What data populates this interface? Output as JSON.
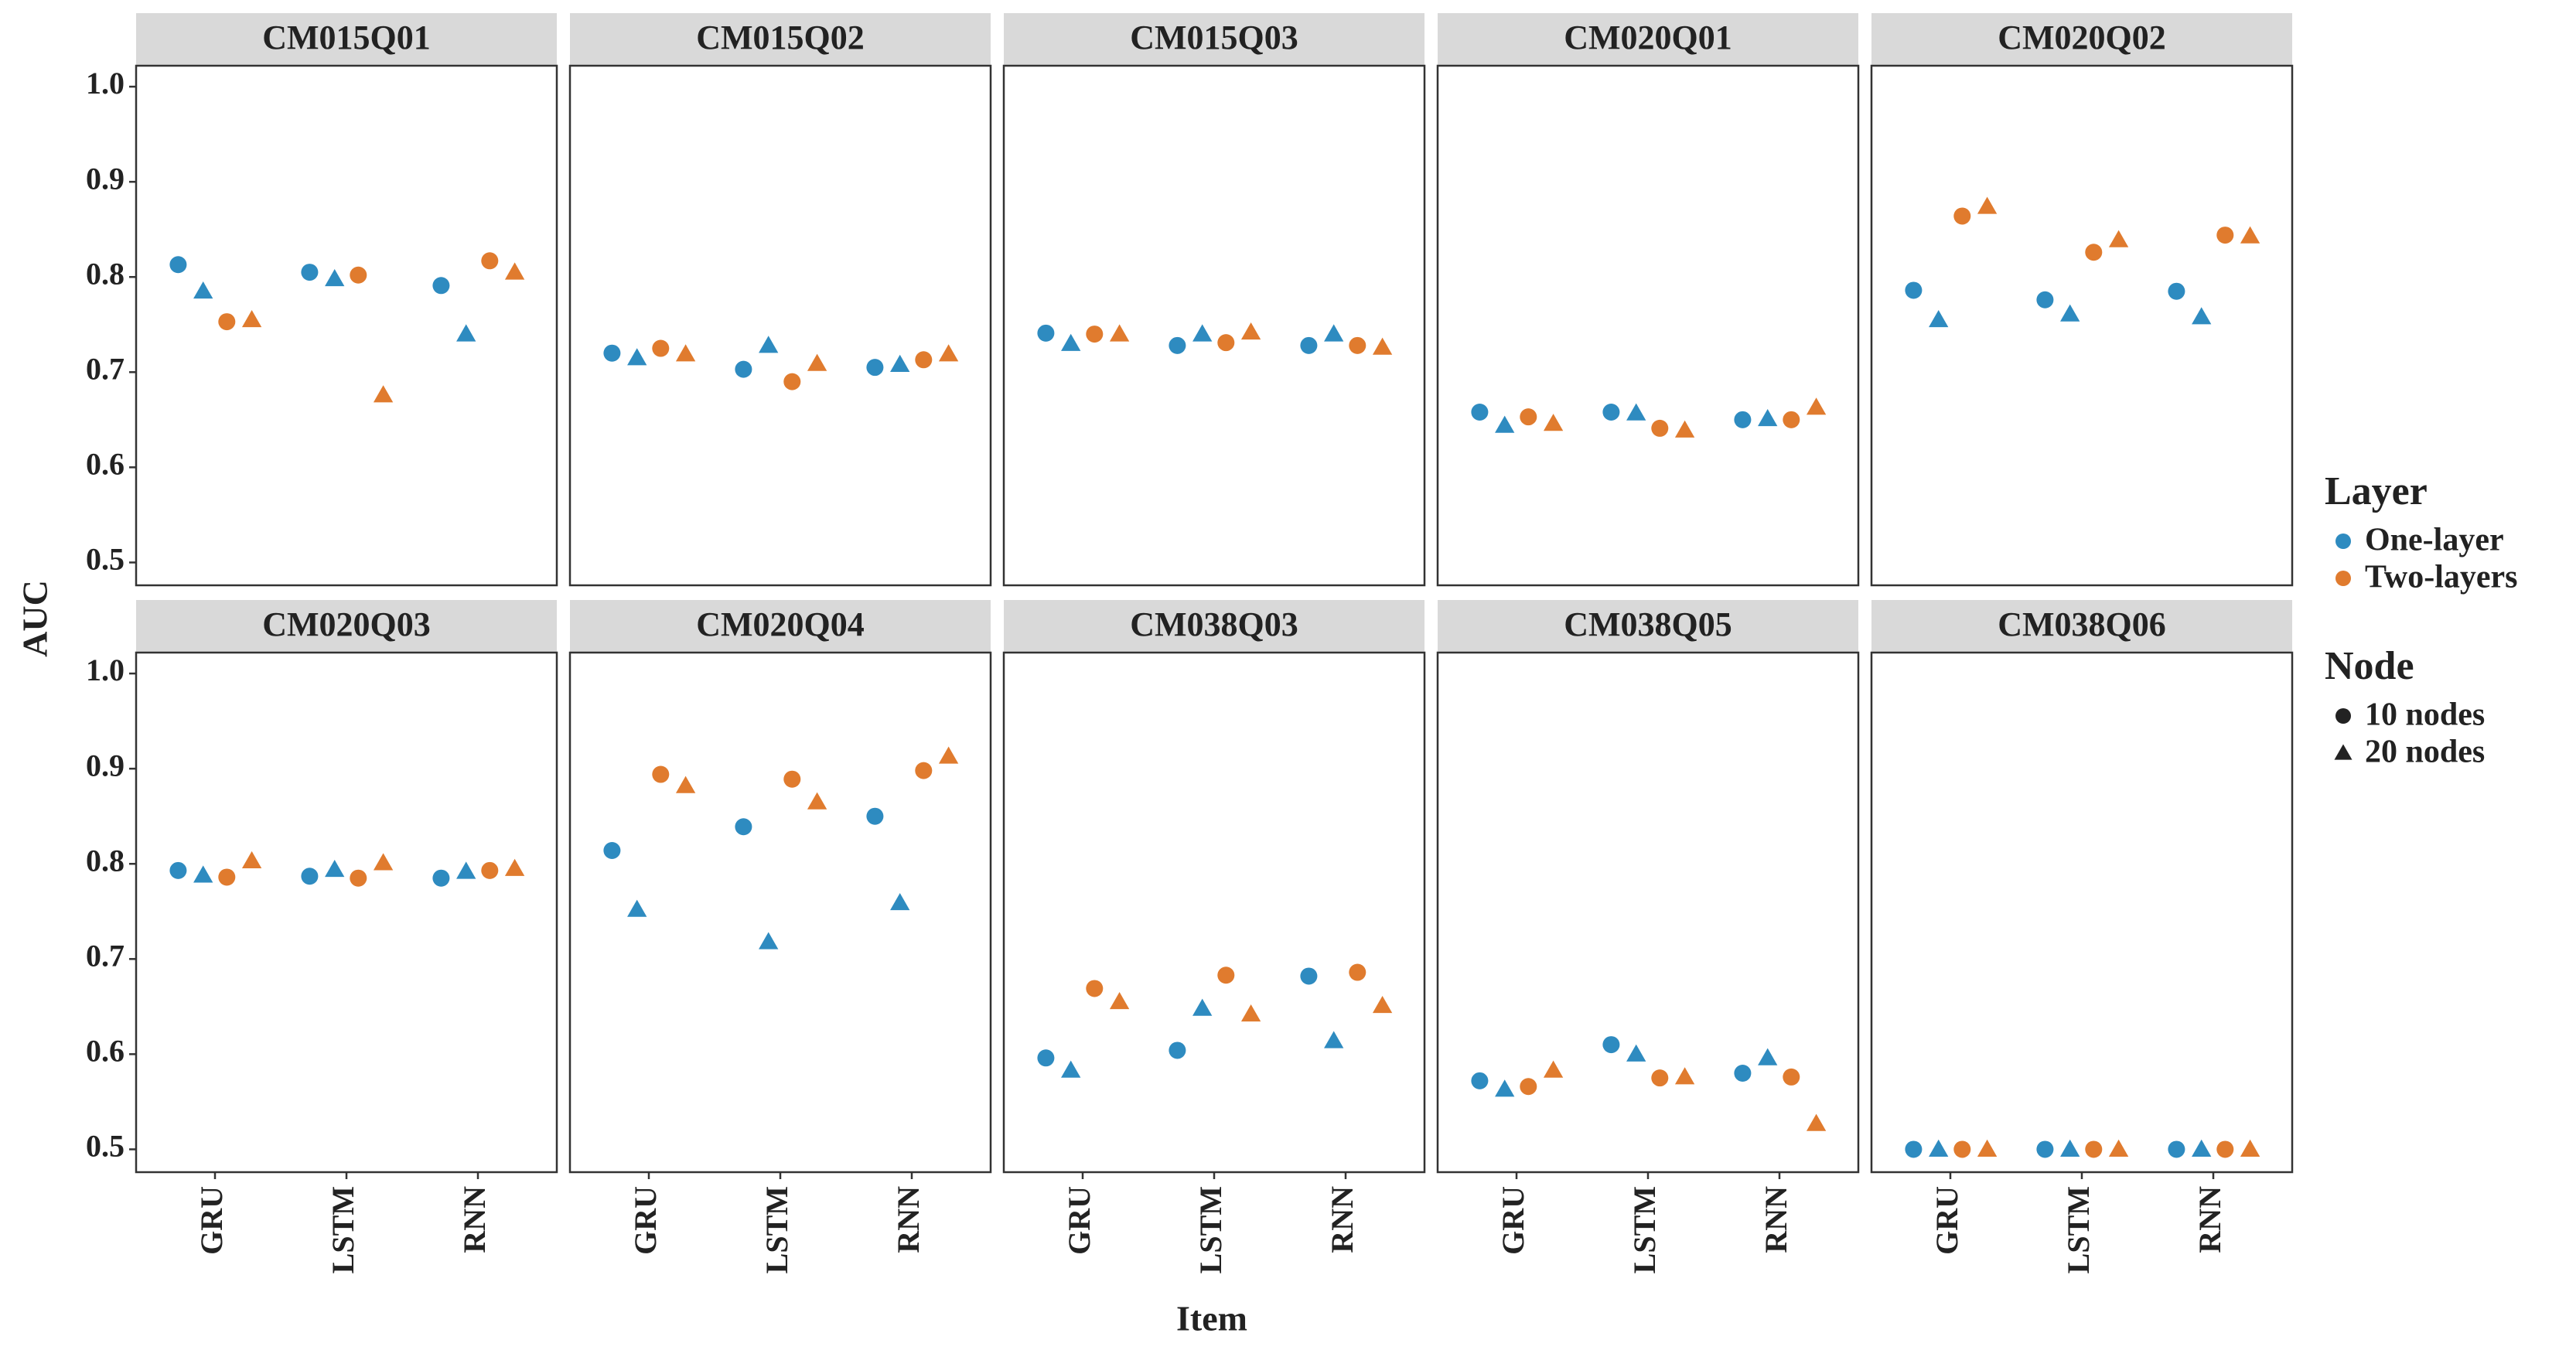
{
  "chart_data": {
    "type": "scatter",
    "x_label": "Item",
    "y_label": "AUC",
    "categories": [
      "GRU",
      "LSTM",
      "RNN"
    ],
    "ylim": [
      0.476,
      1.022
    ],
    "yticks": [
      0.5,
      0.6,
      0.7,
      0.8,
      0.9,
      {
        "value": 1,
        "label": "1.0"
      }
    ],
    "legend": [
      {
        "title": "Layer",
        "items": [
          {
            "name": "One-layer",
            "color": "#2e8bc0"
          },
          {
            "name": "Two-layers",
            "color": "#e07b2e"
          }
        ]
      },
      {
        "title": "Node",
        "items": [
          {
            "name": "10 nodes",
            "shape": "circle"
          },
          {
            "name": "20 nodes",
            "shape": "triangle"
          }
        ]
      }
    ],
    "facets": [
      {
        "title": "CM015Q01",
        "series": [
          {
            "values": [
              0.813,
              0.805,
              0.791
            ]
          },
          {
            "values": [
              0.785,
              0.798,
              0.74
            ]
          },
          {
            "values": [
              0.753,
              0.802,
              0.817
            ]
          },
          {
            "values": [
              0.755,
              0.676,
              0.805
            ]
          }
        ]
      },
      {
        "title": "CM015Q02",
        "series": [
          {
            "values": [
              0.72,
              0.703,
              0.705
            ]
          },
          {
            "values": [
              0.715,
              0.728,
              0.708
            ]
          },
          {
            "values": [
              0.725,
              0.69,
              0.713
            ]
          },
          {
            "values": [
              0.719,
              0.709,
              0.719
            ]
          }
        ]
      },
      {
        "title": "CM015Q03",
        "series": [
          {
            "values": [
              0.741,
              0.728,
              0.728
            ]
          },
          {
            "values": [
              0.73,
              0.74,
              0.74
            ]
          },
          {
            "values": [
              0.74,
              0.731,
              0.728
            ]
          },
          {
            "values": [
              0.74,
              0.742,
              0.726
            ]
          }
        ]
      },
      {
        "title": "CM020Q01",
        "series": [
          {
            "values": [
              0.658,
              0.658,
              0.65
            ]
          },
          {
            "values": [
              0.644,
              0.657,
              0.651
            ]
          },
          {
            "values": [
              0.653,
              0.641,
              0.65
            ]
          },
          {
            "values": [
              0.646,
              0.639,
              0.663
            ]
          }
        ]
      },
      {
        "title": "CM020Q02",
        "series": [
          {
            "values": [
              0.786,
              0.776,
              0.785
            ]
          },
          {
            "values": [
              0.755,
              0.761,
              0.758
            ]
          },
          {
            "values": [
              0.864,
              0.826,
              0.844
            ]
          },
          {
            "values": [
              0.874,
              0.839,
              0.843
            ]
          }
        ]
      },
      {
        "title": "CM020Q03",
        "series": [
          {
            "values": [
              0.793,
              0.787,
              0.785
            ]
          },
          {
            "values": [
              0.788,
              0.794,
              0.792
            ]
          },
          {
            "values": [
              0.786,
              0.785,
              0.793
            ]
          },
          {
            "values": [
              0.803,
              0.801,
              0.795
            ]
          }
        ]
      },
      {
        "title": "CM020Q04",
        "series": [
          {
            "values": [
              0.814,
              0.839,
              0.85
            ]
          },
          {
            "values": [
              0.752,
              0.718,
              0.759
            ]
          },
          {
            "values": [
              0.894,
              0.889,
              0.898
            ]
          },
          {
            "values": [
              0.882,
              0.865,
              0.913
            ]
          }
        ]
      },
      {
        "title": "CM038Q03",
        "series": [
          {
            "values": [
              0.596,
              0.604,
              0.682
            ]
          },
          {
            "values": [
              0.583,
              0.648,
              0.614
            ]
          },
          {
            "values": [
              0.669,
              0.683,
              0.686
            ]
          },
          {
            "values": [
              0.655,
              0.642,
              0.651
            ]
          }
        ]
      },
      {
        "title": "CM038Q05",
        "series": [
          {
            "values": [
              0.572,
              0.61,
              0.58
            ]
          },
          {
            "values": [
              0.563,
              0.6,
              0.596
            ]
          },
          {
            "values": [
              0.566,
              0.575,
              0.576
            ]
          },
          {
            "values": [
              0.583,
              0.576,
              0.527
            ]
          }
        ]
      },
      {
        "title": "CM038Q06",
        "series": [
          {
            "values": [
              0.5,
              0.5,
              0.5
            ]
          },
          {
            "values": [
              0.5,
              0.5,
              0.5
            ]
          },
          {
            "values": [
              0.5,
              0.5,
              0.5
            ]
          },
          {
            "values": [
              0.5,
              0.5,
              0.5
            ]
          }
        ]
      }
    ]
  }
}
